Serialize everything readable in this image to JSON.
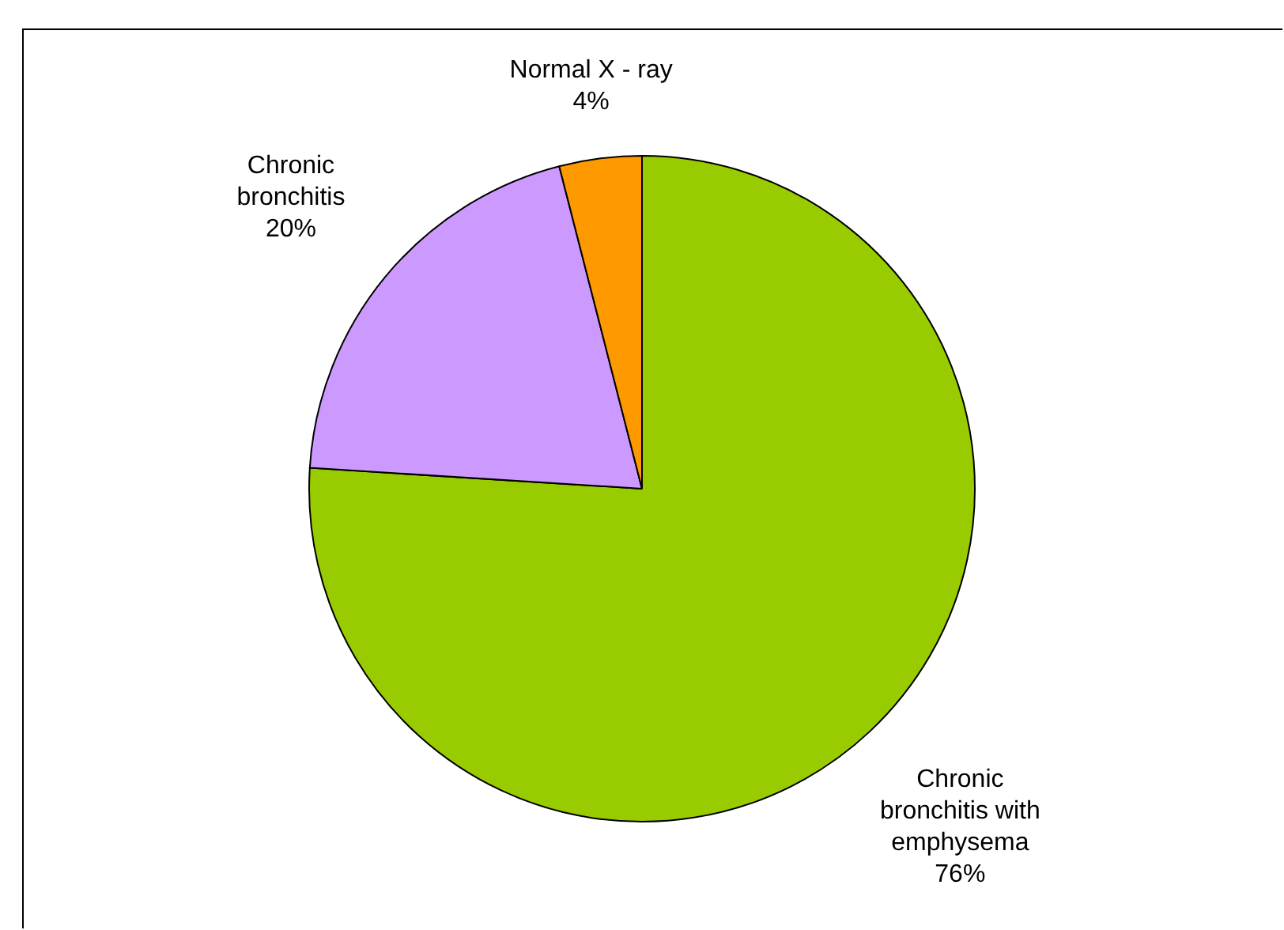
{
  "chart_data": {
    "type": "pie",
    "categories": [
      "Chronic bronchitis with emphysema",
      "Chronic bronchitis",
      "Normal X - ray"
    ],
    "values": [
      76,
      20,
      4
    ],
    "colors": [
      "#99cc00",
      "#cc99ff",
      "#ff9900"
    ],
    "value_labels": [
      "76%",
      "20%",
      "4%"
    ],
    "legend": false
  }
}
